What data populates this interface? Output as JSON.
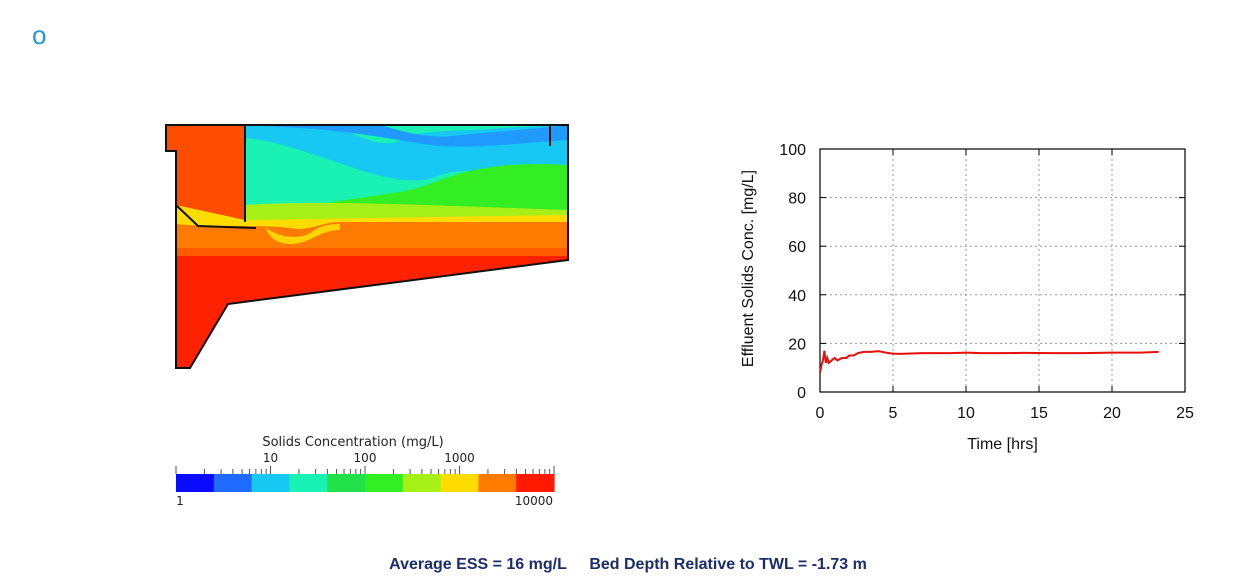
{
  "marker_glyph": "o",
  "colors": {
    "marker": "#1f9ad6",
    "footer_text": "#1b2d6b",
    "series": "#e8100c"
  },
  "contour": {
    "colorbar": {
      "title": "Solids Concentration (mg/L)",
      "scale": "log",
      "range": [
        1,
        10000
      ],
      "top_ticks": [
        "10",
        "100",
        "1000"
      ],
      "bottom_ticks": [
        "1",
        "10000"
      ],
      "colors": [
        "#0a0aff",
        "#1f6bff",
        "#16c8f2",
        "#1af2b4",
        "#22e04a",
        "#33ee22",
        "#a6f018",
        "#ffdc00",
        "#ff7a00",
        "#ff1a00"
      ]
    }
  },
  "chart_data": {
    "type": "line",
    "xlabel": "Time [hrs]",
    "ylabel": "Effluent Solids Conc. [mg/L]",
    "xlim": [
      0,
      25
    ],
    "ylim": [
      0,
      100
    ],
    "xticks": [
      0,
      5,
      10,
      15,
      20,
      25
    ],
    "yticks": [
      0,
      20,
      40,
      60,
      80,
      100
    ],
    "grid": true,
    "series": [
      {
        "color": "#e8100c",
        "x": [
          0,
          0.1,
          0.2,
          0.3,
          0.4,
          0.5,
          0.6,
          0.8,
          1.0,
          1.2,
          1.5,
          1.8,
          2.0,
          2.3,
          2.6,
          3.0,
          3.5,
          4.0,
          4.5,
          5.0,
          5.5,
          6.0,
          7.0,
          8.0,
          9.0,
          10.0,
          11.0,
          12.0,
          14.0,
          16.0,
          18.0,
          20.0,
          22.0,
          23.2
        ],
        "y": [
          8,
          11,
          13,
          17,
          12,
          14,
          12,
          13,
          14,
          13,
          14,
          14,
          15,
          15,
          16,
          16.5,
          16.5,
          16.8,
          16.2,
          15.8,
          15.7,
          15.8,
          16.0,
          16.0,
          16.0,
          16.2,
          16.0,
          16.0,
          16.1,
          16.0,
          16.0,
          16.2,
          16.2,
          16.5
        ]
      }
    ]
  },
  "footer": {
    "ess": "Average ESS = 16 mg/L",
    "bed": "Bed Depth Relative to TWL = -1.73 m"
  }
}
